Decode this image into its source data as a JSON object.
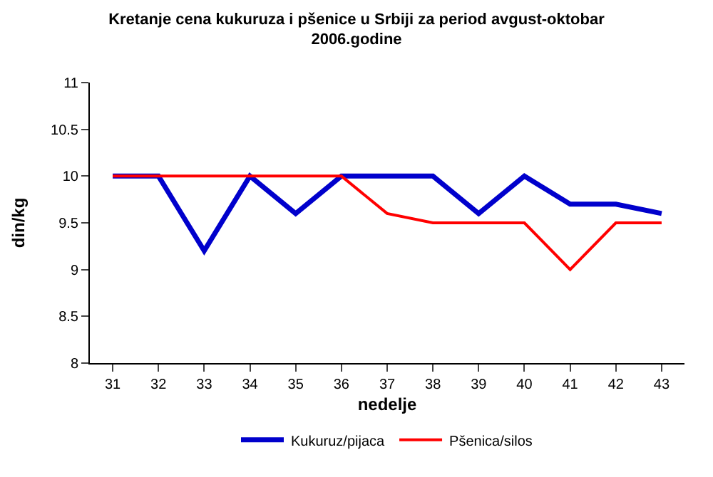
{
  "chart_data": {
    "type": "line",
    "title": "Kretanje cena kukuruza i pšenice u Srbiji za period avgust-oktobar\n2006.godine",
    "xlabel": "nedelje",
    "ylabel": "din/kg",
    "categories": [
      "31",
      "32",
      "33",
      "34",
      "35",
      "36",
      "37",
      "38",
      "39",
      "40",
      "41",
      "42",
      "43"
    ],
    "series": [
      {
        "name": "Kukuruz/pijaca",
        "color": "#0000cc",
        "values": [
          10,
          10,
          9.2,
          10,
          9.6,
          10,
          10,
          10,
          9.6,
          10,
          9.7,
          9.7,
          9.6
        ]
      },
      {
        "name": "Pšenica/silos",
        "color": "#ff0000",
        "values": [
          10,
          10,
          10,
          10,
          10,
          10,
          9.6,
          9.5,
          9.5,
          9.5,
          9.0,
          9.5,
          9.5
        ]
      }
    ],
    "ylim": [
      8,
      11
    ],
    "yticks": [
      8,
      8.5,
      9,
      9.5,
      10,
      10.5,
      11
    ],
    "grid": false,
    "legend": "bottom",
    "marker": "none",
    "line_style": "solid"
  }
}
